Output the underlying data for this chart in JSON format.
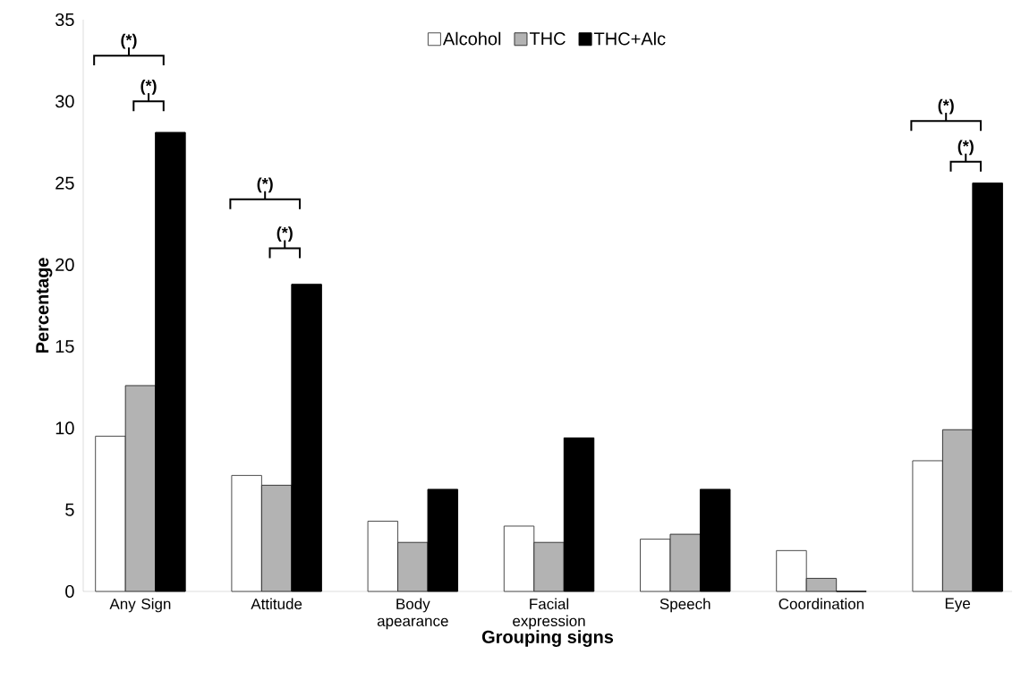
{
  "chart_data": {
    "type": "bar",
    "xlabel": "Grouping signs",
    "ylabel": "Percentage",
    "categories": [
      "Any Sign",
      "Attitude",
      "Body apearance",
      "Facial expression",
      "Speech",
      "Coordination",
      "Eye"
    ],
    "series": [
      {
        "name": "Alcohol",
        "color": "#ffffff",
        "values": [
          9.5,
          7.1,
          4.3,
          4.0,
          3.2,
          2.5,
          8.0
        ]
      },
      {
        "name": "THC",
        "color": "#b3b3b3",
        "values": [
          12.6,
          6.5,
          3.0,
          3.0,
          3.5,
          0.8,
          9.9
        ]
      },
      {
        "name": "THC+Alc",
        "color": "#000000",
        "values": [
          28.1,
          18.8,
          6.25,
          9.4,
          6.25,
          0,
          25.0
        ]
      }
    ],
    "ylim": [
      0,
      35
    ],
    "yticks": [
      0,
      5,
      10,
      15,
      20,
      25,
      30,
      35
    ],
    "legend": "top",
    "annotations": [
      "(*)",
      "(*)",
      "(*)",
      "(*)",
      "(*)",
      "(*)"
    ]
  }
}
